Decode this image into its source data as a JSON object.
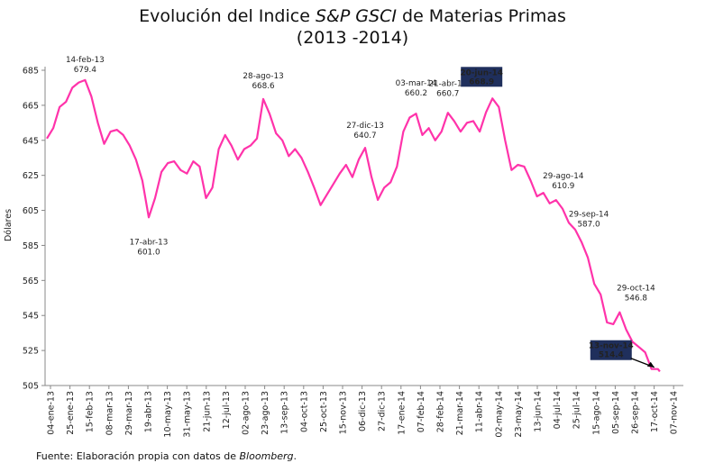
{
  "title": {
    "prefix": "Evolución del Indice ",
    "emphasis": "S&P GSCI",
    "suffix": "  de Materias Primas",
    "period": "(2013 -2014)"
  },
  "source": {
    "prefix": "Fuente: Elaboración propia con datos de ",
    "emphasis": "Bloomberg",
    "suffix": "."
  },
  "colors": {
    "line": "#ff33aa",
    "axis": "#888888",
    "highlight_box": "#1f2f5c",
    "highlight_text": "#ffffff",
    "arrow": "#000000"
  },
  "chart_data": {
    "type": "line",
    "title": "Evolución del Indice S&P GSCI de Materias Primas (2013 -2014)",
    "xlabel": "",
    "ylabel": "Dólares",
    "ylim": [
      505,
      685
    ],
    "yticks": [
      685,
      665,
      645,
      625,
      605,
      585,
      565,
      545,
      525,
      505
    ],
    "grid": false,
    "x_tick_labels": [
      "04-ene-13",
      "25-ene-13",
      "15-feb-13",
      "08-mar-13",
      "29-mar-13",
      "19-abr-13",
      "10-may-13",
      "31-may-13",
      "21-jun-13",
      "12-jul-13",
      "02-ago-13",
      "23-ago-13",
      "13-sep-13",
      "04-oct-13",
      "25-oct-13",
      "15-nov-13",
      "06-dic-13",
      "27-dic-13",
      "17-ene-14",
      "07-feb-14",
      "28-feb-14",
      "21-mar-14",
      "11-abr-14",
      "02-may-14",
      "23-may-14",
      "13-jun-14",
      "04-jul-14",
      "25-jul-14",
      "15-ago-14",
      "05-sep-14",
      "26-sep-14",
      "17-oct-14",
      "07-nov-14"
    ],
    "series": [
      {
        "name": "S&P GSCI",
        "x_week": [
          0,
          1,
          2,
          3,
          4,
          5,
          6,
          7,
          8,
          9,
          10,
          11,
          12,
          13,
          14,
          15,
          16,
          17,
          18,
          19,
          20,
          21,
          22,
          23,
          24,
          25,
          26,
          27,
          28,
          29,
          30,
          31,
          32,
          33,
          34,
          35,
          36,
          37,
          38,
          39,
          40,
          41,
          42,
          43,
          44,
          45,
          46,
          47,
          48,
          49,
          50,
          51,
          52,
          53,
          54,
          55,
          56,
          57,
          58,
          59,
          60,
          61,
          62,
          63,
          64,
          65,
          66,
          67,
          68,
          69,
          70,
          71,
          72,
          73,
          74,
          75,
          76,
          77,
          78,
          79,
          80,
          81,
          82,
          83,
          84,
          85,
          86,
          87,
          88,
          89,
          90,
          91,
          92,
          93,
          94,
          95,
          96,
          96.3
        ],
        "values": [
          646,
          652,
          664,
          667,
          675,
          678,
          679.4,
          670,
          655,
          643,
          650,
          651,
          648,
          642,
          634,
          622,
          601,
          612,
          627,
          632,
          633,
          628,
          626,
          633,
          630,
          612,
          618,
          640,
          648,
          642,
          634,
          640,
          642,
          646,
          668.6,
          660,
          649,
          645,
          636,
          640,
          635,
          627,
          618,
          608,
          614,
          620,
          626,
          631,
          624,
          634,
          640.7,
          624,
          611,
          618,
          621,
          630,
          650,
          658,
          660.2,
          648,
          652,
          645,
          650,
          660.7,
          656,
          650,
          655,
          656,
          650,
          661,
          668.9,
          664,
          645,
          628,
          631,
          630,
          622,
          613,
          615,
          609,
          610.9,
          606,
          598,
          594,
          587.0,
          578,
          563,
          557,
          541,
          540,
          546.8,
          537,
          530,
          527,
          524,
          514.4,
          514.4,
          513
        ]
      }
    ],
    "annotations": [
      {
        "date": "14-feb-13",
        "value": "679.4",
        "week": 6,
        "highlight": false
      },
      {
        "date": "17-abr-13",
        "value": "601.0",
        "week": 16,
        "highlight": false
      },
      {
        "date": "28-ago-13",
        "value": "668.6",
        "week": 34,
        "highlight": false
      },
      {
        "date": "27-dic-13",
        "value": "640.7",
        "week": 50,
        "highlight": false
      },
      {
        "date": "03-mar-14",
        "value": "660.2",
        "week": 58,
        "highlight": false
      },
      {
        "date": "21-abr-14",
        "value": "660.7",
        "week": 63,
        "highlight": false
      },
      {
        "date": "20-jun-14",
        "value": "668.9",
        "week": 70,
        "highlight": true
      },
      {
        "date": "29-ago-14",
        "value": "610.9",
        "week": 80,
        "highlight": false
      },
      {
        "date": "29-sep-14",
        "value": "587.0",
        "week": 84,
        "highlight": false
      },
      {
        "date": "29-oct-14",
        "value": "546.8",
        "week": 90,
        "highlight": false
      },
      {
        "date": "13-nov-14",
        "value": "514.4",
        "week": 96,
        "highlight": true
      }
    ]
  }
}
